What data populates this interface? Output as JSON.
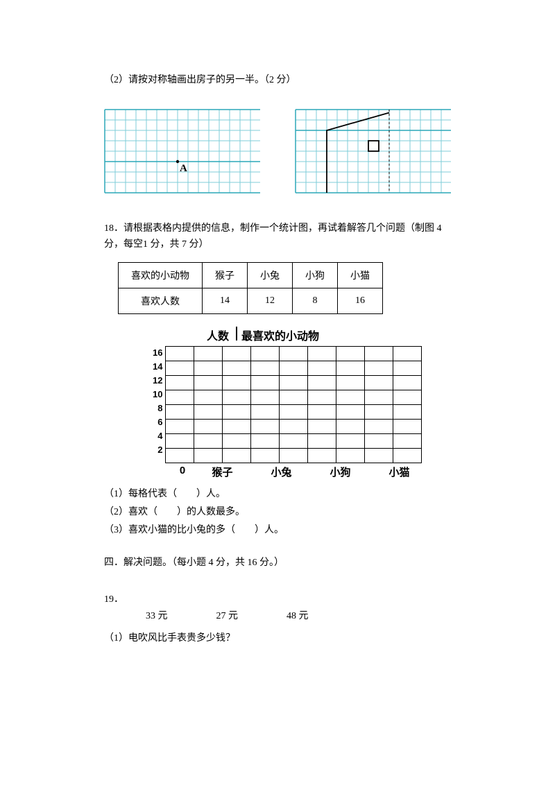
{
  "q2": {
    "text": "（2）请按对称轴画出房子的另一半。（2 分）",
    "grid_left": {
      "cols": 15,
      "rows": 8,
      "cell": 15,
      "fill_color": "#ffffff",
      "minor_color": "#7fcdd8",
      "major_color": "#2aa7b8",
      "major_rows": [
        0,
        5,
        8
      ],
      "point_label": "A",
      "point_col": 7,
      "point_row": 5
    },
    "grid_right": {
      "cols": 15,
      "rows": 8,
      "cell": 15,
      "fill_color": "#ffffff",
      "minor_color": "#7fcdd8",
      "major_color": "#2aa7b8",
      "major_rows": [
        0,
        2,
        8
      ],
      "axis_col": 9,
      "house_poly": [
        [
          3,
          8
        ],
        [
          3,
          2
        ],
        [
          9,
          0.3
        ]
      ],
      "house_sq": {
        "c0": 7,
        "r0": 3,
        "c1": 8,
        "r1": 4
      }
    }
  },
  "q18": {
    "intro": "18．请根据表格内提供的信息，制作一个统计图，再试着解答几个问题（制图 4 分，每空1 分，共 7 分）",
    "table": {
      "headers": [
        "喜欢的小动物",
        "猴子",
        "小兔",
        "小狗",
        "小猫"
      ],
      "row": [
        "喜欢人数",
        "14",
        "12",
        "8",
        "16"
      ]
    },
    "chart": {
      "y_title": "人数",
      "title": "最喜欢的小动物",
      "y_ticks": [
        "16",
        "14",
        "12",
        "10",
        "8",
        "6",
        "4",
        "2"
      ],
      "rows": 8,
      "cols": 9,
      "x_zero": "0",
      "x_labels": [
        "猴子",
        "小兔",
        "小狗",
        "小猫"
      ]
    },
    "subs": [
      "（1）每格代表（　　）人。",
      "（2）喜欢（　　）的人数最多。",
      "（3）喜欢小猫的比小兔的多（　　）人。"
    ]
  },
  "section4": "四．解决问题。（每小题 4 分，共 16 分。）",
  "q19": {
    "num": "19．",
    "prices": [
      "33 元",
      "27 元",
      "48 元"
    ],
    "sub1": "（1）电吹风比手表贵多少钱？"
  }
}
